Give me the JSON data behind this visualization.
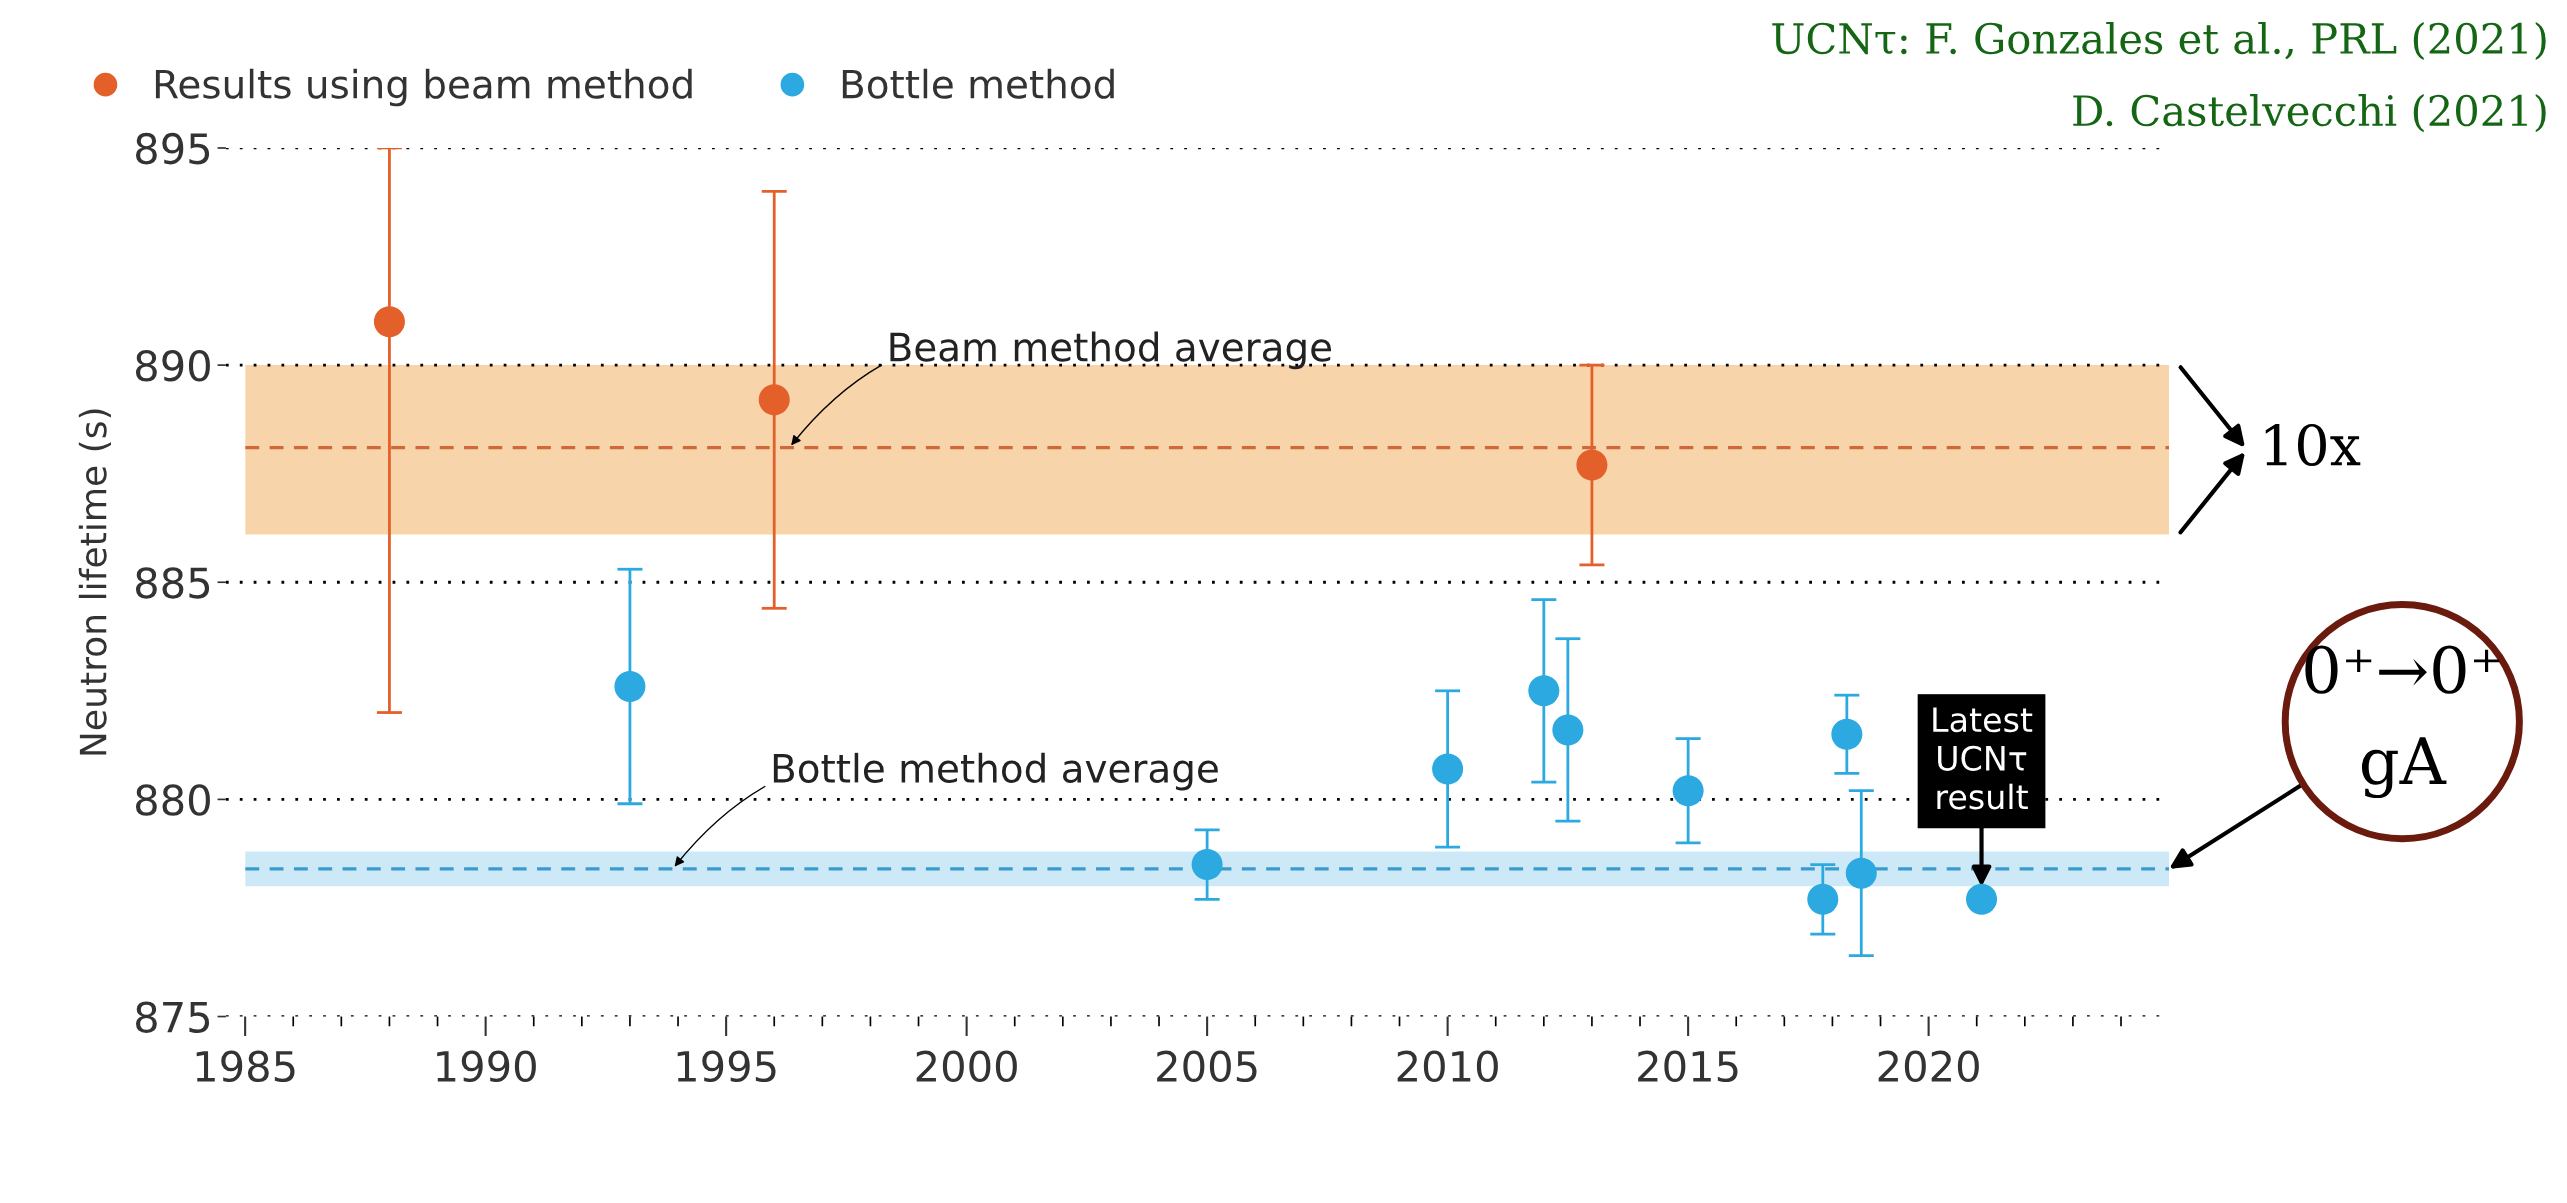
{
  "chart_data": {
    "type": "scatter",
    "ylabel": "Neutron lifetime (s)",
    "xlim": [
      1984.6,
      2025
    ],
    "ylim": [
      875,
      895
    ],
    "xticks": [
      1985,
      {
        "value": 1986,
        "label": null
      },
      {
        "value": 1987,
        "label": null
      },
      {
        "value": 1988,
        "label": null
      },
      {
        "value": 1989,
        "label": null
      },
      1990,
      {
        "value": 1991,
        "label": null
      },
      {
        "value": 1992,
        "label": null
      },
      {
        "value": 1993,
        "label": null
      },
      {
        "value": 1994,
        "label": null
      },
      1995,
      {
        "value": 1996,
        "label": null
      },
      {
        "value": 1997,
        "label": null
      },
      {
        "value": 1998,
        "label": null
      },
      {
        "value": 1999,
        "label": null
      },
      2000,
      {
        "value": 2001,
        "label": null
      },
      {
        "value": 2002,
        "label": null
      },
      {
        "value": 2003,
        "label": null
      },
      {
        "value": 2004,
        "label": null
      },
      2005,
      {
        "value": 2006,
        "label": null
      },
      {
        "value": 2007,
        "label": null
      },
      {
        "value": 2008,
        "label": null
      },
      {
        "value": 2009,
        "label": null
      },
      2010,
      {
        "value": 2011,
        "label": null
      },
      {
        "value": 2012,
        "label": null
      },
      {
        "value": 2013,
        "label": null
      },
      {
        "value": 2014,
        "label": null
      },
      2015,
      {
        "value": 2016,
        "label": null
      },
      {
        "value": 2017,
        "label": null
      },
      {
        "value": 2018,
        "label": null
      },
      {
        "value": 2019,
        "label": null
      },
      2020,
      {
        "value": 2021,
        "label": null
      },
      {
        "value": 2022,
        "label": null
      },
      {
        "value": 2023,
        "label": null
      },
      {
        "value": 2024,
        "label": null
      }
    ],
    "yticks": [
      875,
      880,
      885,
      890,
      895
    ],
    "grid": "y",
    "legend": "top left",
    "marker": "circle",
    "series": [
      {
        "name": "Results using beam method",
        "color": "#e4602a",
        "x": [
          1988,
          1996,
          2013
        ],
        "values": [
          891.0,
          889.2,
          887.7
        ],
        "errors": [
          [
            882.0,
            895.0
          ],
          [
            884.4,
            894.0
          ],
          [
            885.4,
            890.0
          ]
        ]
      },
      {
        "name": "Bottle method",
        "color": "#2ba9e0",
        "x": [
          1993,
          2005,
          2010,
          2012,
          2012.5,
          2015,
          2017.8,
          2018.3,
          2018.6,
          2021.1
        ],
        "values": [
          882.6,
          878.5,
          880.7,
          882.5,
          881.6,
          880.2,
          877.7,
          881.5,
          878.3,
          877.7
        ],
        "errors": [
          [
            879.9,
            885.3
          ],
          [
            877.7,
            879.3
          ],
          [
            878.9,
            882.5
          ],
          [
            880.4,
            884.6
          ],
          [
            879.5,
            883.7
          ],
          [
            879.0,
            881.4
          ],
          [
            876.9,
            878.5
          ],
          [
            880.6,
            882.4
          ],
          [
            876.4,
            880.2
          ],
          null
        ]
      }
    ],
    "bands": [
      {
        "axis": "y",
        "from": 886.1,
        "to": 890.0,
        "color": "#f8d4aa"
      },
      {
        "axis": "y",
        "from": 878.0,
        "to": 878.8,
        "color": "#cde9f7"
      }
    ],
    "ref_lines": [
      {
        "axis": "y",
        "value": 888.1,
        "label": "Beam method average",
        "color": "#d0683a",
        "line_style": "dashed"
      },
      {
        "axis": "y",
        "value": 878.4,
        "label": "Bottle method average",
        "color": "#3a9ccc",
        "line_style": "dashed"
      }
    ],
    "annotations": [
      {
        "text": "Latest\nUCNτ\nresult",
        "x": 2021.1,
        "y": 877.7
      },
      "10x",
      {
        "text": "0⁺→0⁺\ngA",
        "x": 2025,
        "y": 878.4
      },
      "UCNτ: F. Gonzales et al., PRL (2021)",
      "D. Castelvecchi (2021)"
    ]
  }
}
